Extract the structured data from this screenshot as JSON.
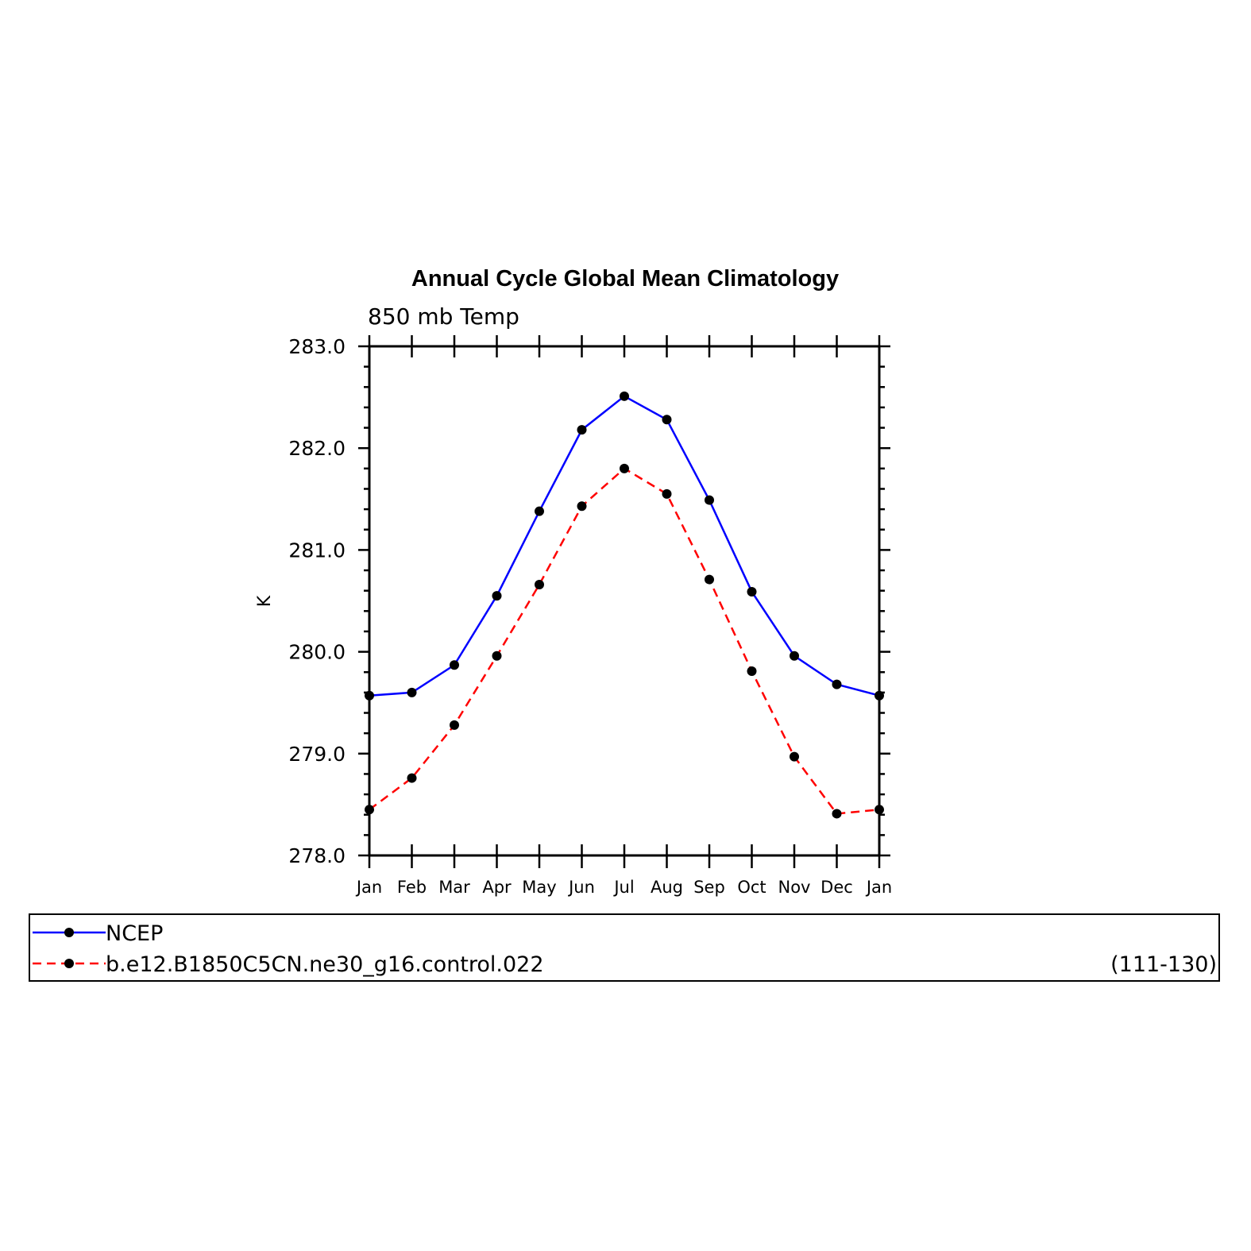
{
  "chart_data": {
    "type": "line",
    "title": "Annual Cycle Global Mean Climatology",
    "subtitle": "850 mb Temp",
    "ylabel": "K",
    "xlabel": "",
    "categories": [
      "Jan",
      "Feb",
      "Mar",
      "Apr",
      "May",
      "Jun",
      "Jul",
      "Aug",
      "Sep",
      "Oct",
      "Nov",
      "Dec",
      "Jan"
    ],
    "ylim": [
      278.0,
      283.0
    ],
    "yticks": [
      "278.0",
      "279.0",
      "280.0",
      "281.0",
      "282.0",
      "283.0"
    ],
    "ytick_values": [
      278.0,
      279.0,
      280.0,
      281.0,
      282.0,
      283.0
    ],
    "minor_ticks_per_major": 5,
    "grid": false,
    "legend_position": "bottom",
    "series": [
      {
        "name": "NCEP",
        "color": "#0000ff",
        "dash": "solid",
        "marker": "filled-circle",
        "values": [
          279.57,
          279.6,
          279.87,
          280.55,
          281.38,
          282.18,
          282.51,
          282.28,
          281.49,
          280.59,
          279.96,
          279.68,
          279.57
        ]
      },
      {
        "name": "b.e12.B1850C5CN.ne30_g16.control.022",
        "color": "#ff0000",
        "dash": "dashed",
        "marker": "filled-circle",
        "values": [
          278.45,
          278.76,
          279.28,
          279.96,
          280.66,
          281.43,
          281.8,
          281.55,
          280.71,
          279.81,
          278.97,
          278.41,
          278.45
        ]
      }
    ],
    "legend_note": "(111-130)"
  }
}
